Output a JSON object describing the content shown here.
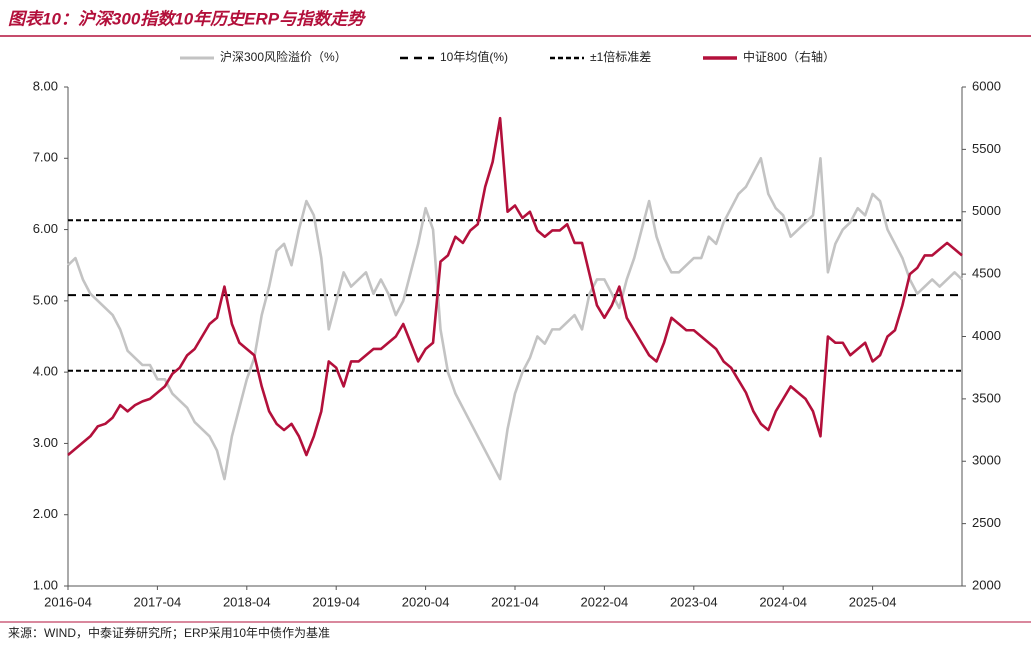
{
  "chart_data": {
    "type": "line",
    "title": "图表10：沪深300指数10年历史ERP与指数走势",
    "source": "来源：WIND，中泰证券研究所；ERP采用10年中债作为基准",
    "x": [
      "2016-04",
      "2016-05",
      "2016-06",
      "2016-07",
      "2016-08",
      "2016-09",
      "2016-10",
      "2016-11",
      "2016-12",
      "2017-01",
      "2017-02",
      "2017-03",
      "2017-04",
      "2017-05",
      "2017-06",
      "2017-07",
      "2017-08",
      "2017-09",
      "2017-10",
      "2017-11",
      "2017-12",
      "2018-01",
      "2018-02",
      "2018-03",
      "2018-04",
      "2018-05",
      "2018-06",
      "2018-07",
      "2018-08",
      "2018-09",
      "2018-10",
      "2018-11",
      "2018-12",
      "2019-01",
      "2019-02",
      "2019-03",
      "2019-04",
      "2019-05",
      "2019-06",
      "2019-07",
      "2019-08",
      "2019-09",
      "2019-10",
      "2019-11",
      "2019-12",
      "2020-01",
      "2020-02",
      "2020-03",
      "2020-04",
      "2020-05",
      "2020-06",
      "2020-07",
      "2020-08",
      "2020-09",
      "2020-10",
      "2020-11",
      "2020-12",
      "2021-01",
      "2021-02",
      "2021-03",
      "2021-04",
      "2021-05",
      "2021-06",
      "2021-07",
      "2021-08",
      "2021-09",
      "2021-10",
      "2021-11",
      "2021-12",
      "2022-01",
      "2022-02",
      "2022-03",
      "2022-04",
      "2022-05",
      "2022-06",
      "2022-07",
      "2022-08",
      "2022-09",
      "2022-10",
      "2022-11",
      "2022-12",
      "2023-01",
      "2023-02",
      "2023-03",
      "2023-04",
      "2023-05",
      "2023-06",
      "2023-07",
      "2023-08",
      "2023-09",
      "2023-10",
      "2023-11",
      "2023-12",
      "2024-01",
      "2024-02",
      "2024-03",
      "2024-04",
      "2024-05",
      "2024-06",
      "2024-07",
      "2024-08",
      "2024-09",
      "2024-10",
      "2024-11",
      "2024-12",
      "2025-01",
      "2025-02",
      "2025-03",
      "2025-04",
      "2025-05",
      "2025-06",
      "2025-07",
      "2025-08",
      "2025-09",
      "2025-10",
      "2025-11",
      "2025-12",
      "2026-01",
      "2026-02",
      "2026-03",
      "2026-04"
    ],
    "xticks": [
      "2016-04",
      "2017-04",
      "2018-04",
      "2019-04",
      "2020-04",
      "2021-04",
      "2022-04",
      "2023-04",
      "2024-04",
      "2025-04"
    ],
    "ylim": [
      1,
      8
    ],
    "yticks": [
      {
        "value": 1,
        "label": "1.00"
      },
      {
        "value": 2,
        "label": "2.00"
      },
      {
        "value": 3,
        "label": "3.00"
      },
      {
        "value": 4,
        "label": "4.00"
      },
      {
        "value": 5,
        "label": "5.00"
      },
      {
        "value": 6,
        "label": "6.00"
      },
      {
        "value": 7,
        "label": "7.00"
      },
      {
        "value": 8,
        "label": "8.00"
      }
    ],
    "y2lim": [
      2000,
      6000
    ],
    "y2ticks": [
      2000,
      2500,
      3000,
      3500,
      4000,
      4500,
      5000,
      5500,
      6000
    ],
    "series": [
      {
        "name": "沪深300风险溢价（%）",
        "color": "#c3c3c3",
        "values": [
          5.5,
          5.6,
          5.3,
          5.1,
          5.0,
          4.9,
          4.8,
          4.6,
          4.3,
          4.2,
          4.1,
          4.1,
          3.9,
          3.9,
          3.7,
          3.6,
          3.5,
          3.3,
          3.2,
          3.1,
          2.9,
          2.5,
          3.1,
          3.5,
          3.9,
          4.2,
          4.8,
          5.2,
          5.7,
          5.8,
          5.5,
          6.0,
          6.4,
          6.2,
          5.6,
          4.6,
          5.0,
          5.4,
          5.2,
          5.3,
          5.4,
          5.1,
          5.3,
          5.1,
          4.8,
          5.0,
          5.4,
          5.8,
          6.3,
          6.0,
          4.6,
          4.0,
          3.7,
          3.5,
          3.3,
          3.1,
          2.9,
          2.7,
          2.5,
          3.2,
          3.7,
          4.0,
          4.2,
          4.5,
          4.4,
          4.6,
          4.6,
          4.7,
          4.8,
          4.6,
          5.1,
          5.3,
          5.3,
          5.1,
          4.9,
          5.3,
          5.6,
          6.0,
          6.4,
          5.9,
          5.6,
          5.4,
          5.4,
          5.5,
          5.6,
          5.6,
          5.9,
          5.8,
          6.1,
          6.3,
          6.5,
          6.6,
          6.8,
          7.0,
          6.5,
          6.3,
          6.2,
          5.9,
          6.0,
          6.1,
          6.2,
          7.0,
          5.4,
          5.8,
          6.0,
          6.1,
          6.3,
          6.2,
          6.5,
          6.4,
          6.0,
          5.8,
          5.6,
          5.3,
          5.1,
          5.2,
          5.3,
          5.2,
          5.3,
          5.4,
          5.3
        ]
      },
      {
        "name": "中证800（右轴）",
        "color": "#b3103b",
        "axis": "y2",
        "values": [
          3050,
          3100,
          3150,
          3200,
          3280,
          3300,
          3350,
          3450,
          3400,
          3450,
          3480,
          3500,
          3550,
          3600,
          3700,
          3750,
          3850,
          3900,
          4000,
          4100,
          4150,
          4400,
          4100,
          3950,
          3900,
          3850,
          3600,
          3400,
          3300,
          3250,
          3300,
          3200,
          3050,
          3200,
          3400,
          3800,
          3750,
          3600,
          3800,
          3800,
          3850,
          3900,
          3900,
          3950,
          4000,
          4100,
          3950,
          3800,
          3900,
          3950,
          4600,
          4650,
          4800,
          4750,
          4850,
          4900,
          5200,
          5400,
          5750,
          5000,
          5050,
          4950,
          5000,
          4850,
          4800,
          4850,
          4850,
          4900,
          4750,
          4750,
          4500,
          4250,
          4150,
          4250,
          4400,
          4150,
          4050,
          3950,
          3850,
          3800,
          3950,
          4150,
          4100,
          4050,
          4050,
          4000,
          3950,
          3900,
          3800,
          3750,
          3650,
          3550,
          3400,
          3300,
          3250,
          3400,
          3500,
          3600,
          3550,
          3500,
          3400,
          3200,
          4000,
          3950,
          3950,
          3850,
          3900,
          3950,
          3800,
          3850,
          4000,
          4050,
          4250,
          4500,
          4550,
          4650,
          4650,
          4700,
          4750,
          4700,
          4650
        ]
      }
    ],
    "reference_lines": [
      {
        "name": "10年均值(%)",
        "color": "#000000",
        "dash": "8,6",
        "values": [
          5.08
        ]
      },
      {
        "name": "±1倍标准差",
        "color": "#000000",
        "dash": "5,3",
        "values": [
          6.13,
          4.02
        ]
      }
    ]
  }
}
